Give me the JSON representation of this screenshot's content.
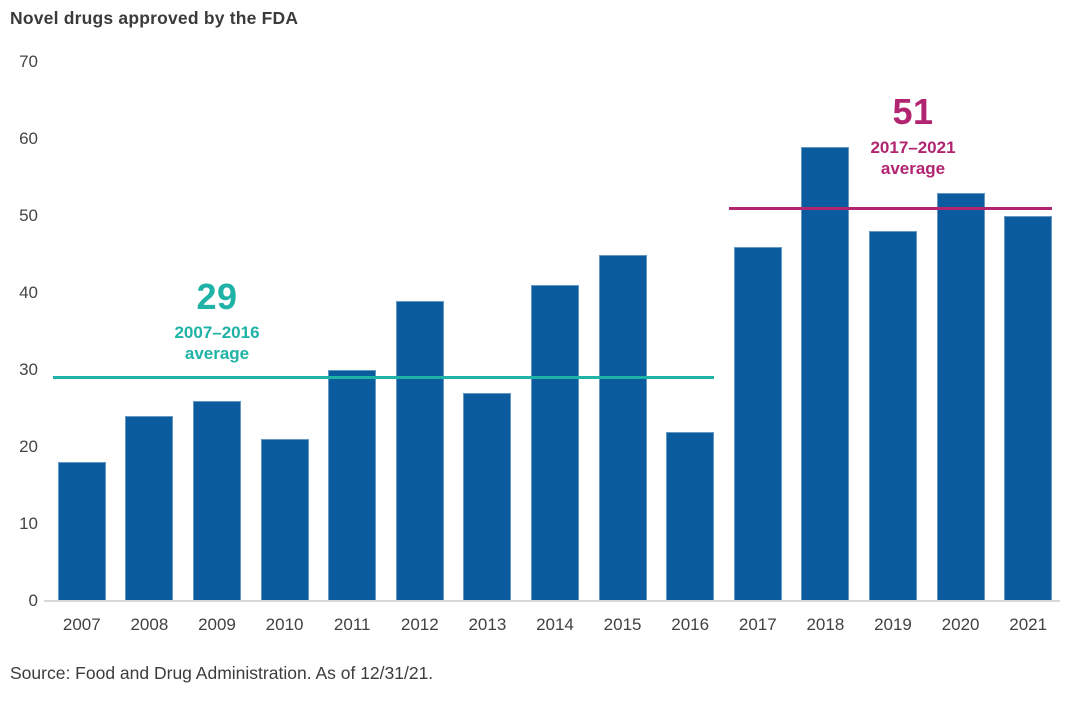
{
  "title": "Novel drugs approved by the FDA",
  "source": "Source: Food and Drug Administration. As of 12/31/21.",
  "colors": {
    "bar": "#0b5c9e",
    "teal": "#1fb2a6",
    "magenta": "#b12470",
    "text": "#3b3b3b",
    "axis": "#d8d8d8"
  },
  "chart_data": {
    "type": "bar",
    "title": "Novel drugs approved by the FDA",
    "categories": [
      "2007",
      "2008",
      "2009",
      "2010",
      "2011",
      "2012",
      "2013",
      "2014",
      "2015",
      "2016",
      "2017",
      "2018",
      "2019",
      "2020",
      "2021"
    ],
    "values": [
      18,
      24,
      26,
      21,
      30,
      39,
      27,
      41,
      45,
      22,
      46,
      59,
      48,
      53,
      50
    ],
    "xlabel": "",
    "ylabel": "",
    "ylim": [
      0,
      70
    ],
    "yticks": [
      0,
      10,
      20,
      30,
      40,
      50,
      60,
      70
    ],
    "grid": false,
    "legend": "none",
    "annotations": [
      {
        "value": 29,
        "label": "29",
        "sublabel1": "2007–2016",
        "sublabel2": "average",
        "span_categories": [
          "2007",
          "2016"
        ],
        "color": "#1fb2a6"
      },
      {
        "value": 51,
        "label": "51",
        "sublabel1": "2017–2021",
        "sublabel2": "average",
        "span_categories": [
          "2017",
          "2021"
        ],
        "color": "#b12470"
      }
    ]
  }
}
